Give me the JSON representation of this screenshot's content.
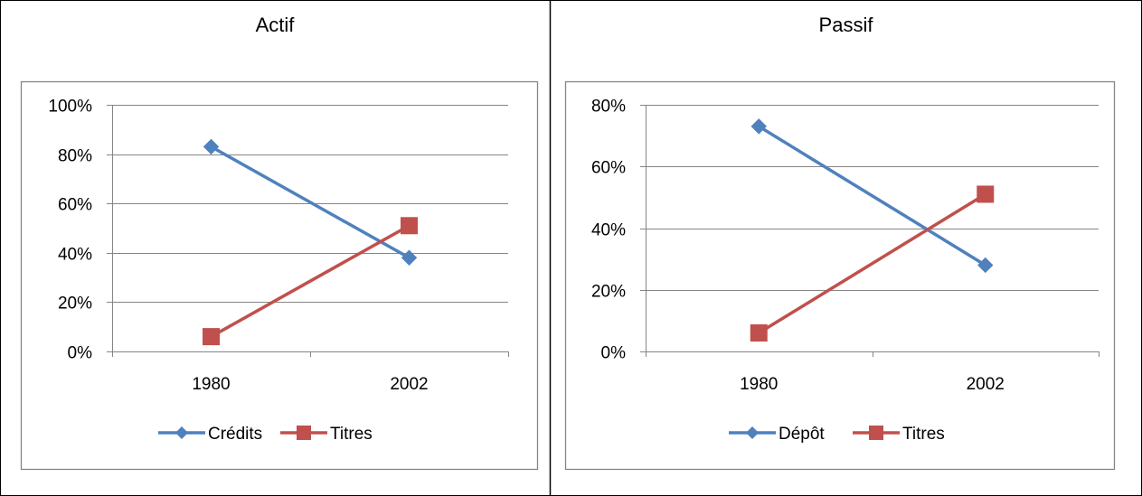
{
  "colors": {
    "series1": "#4F81BD",
    "series1_marker": "#4F81BD",
    "series2": "#C0504D",
    "grid": "#858585",
    "frame": "#858585",
    "border": "#000000"
  },
  "chart_data": [
    {
      "type": "line",
      "title": "Actif",
      "categories": [
        "1980",
        "2002"
      ],
      "series": [
        {
          "name": "Crédits",
          "values": [
            83,
            38
          ],
          "marker": "diamond"
        },
        {
          "name": "Titres",
          "values": [
            6,
            51
          ],
          "marker": "square"
        }
      ],
      "ylim": [
        0,
        100
      ],
      "yticks": [
        0,
        20,
        40,
        60,
        80,
        100
      ],
      "ytick_labels": [
        "0%",
        "20%",
        "40%",
        "60%",
        "80%",
        "100%"
      ],
      "grid": true,
      "legend": "bottom"
    },
    {
      "type": "line",
      "title": "Passif",
      "categories": [
        "1980",
        "2002"
      ],
      "series": [
        {
          "name": "Dépôt",
          "values": [
            73,
            28
          ],
          "marker": "diamond"
        },
        {
          "name": "Titres",
          "values": [
            6,
            51
          ],
          "marker": "square"
        }
      ],
      "ylim": [
        0,
        80
      ],
      "yticks": [
        0,
        20,
        40,
        60,
        80
      ],
      "ytick_labels": [
        "0%",
        "20%",
        "40%",
        "60%",
        "80%"
      ],
      "grid": true,
      "legend": "bottom"
    }
  ]
}
